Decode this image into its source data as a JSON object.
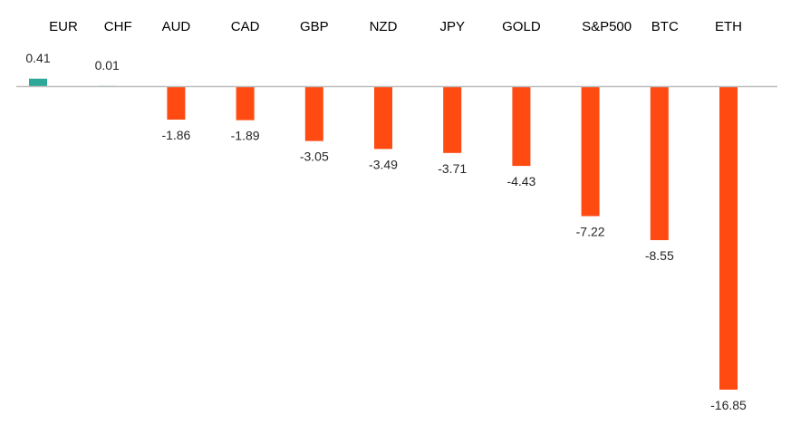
{
  "chart_data": {
    "type": "bar",
    "categories": [
      "EUR",
      "CHF",
      "AUD",
      "CAD",
      "GBP",
      "NZD",
      "JPY",
      "GOLD",
      "S&P500",
      "BTC",
      "ETH"
    ],
    "values": [
      0.41,
      0.01,
      -1.86,
      -1.89,
      -3.05,
      -3.49,
      -3.71,
      -4.43,
      -7.22,
      -8.55,
      -16.85
    ],
    "data_labels": [
      "0.41",
      "0.01",
      "-1.86",
      "-1.89",
      "-3.05",
      "-3.49",
      "-3.71",
      "-4.43",
      "-7.22",
      "-8.55",
      "-16.85"
    ],
    "title": "",
    "xlabel": "",
    "ylabel": "",
    "ylim": [
      -16.85,
      0.41
    ],
    "grid": false,
    "legend": "none",
    "category_axis_position": "top",
    "colors": {
      "positive": "#2ea899",
      "negative": "#ff4a12",
      "axis": "#bfbfbf"
    }
  }
}
